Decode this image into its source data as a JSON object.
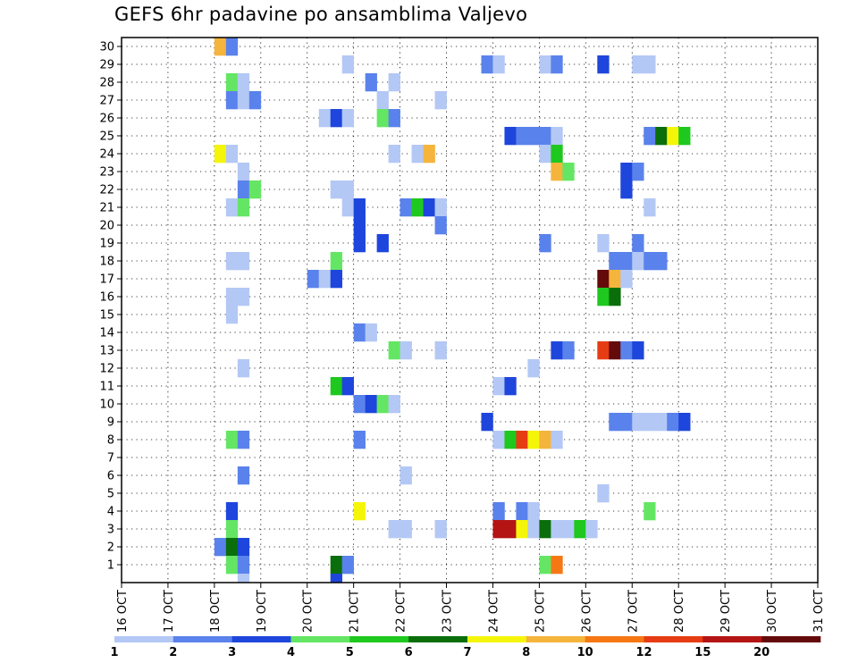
{
  "chart_data": {
    "type": "heatmap",
    "title": "GEFS 6hr padavine po ansamblima Valjevo",
    "xlabel": "",
    "ylabel": "",
    "x_tick_labels": [
      "16 OCT",
      "17 OCT",
      "18 OCT",
      "19 OCT",
      "20 OCT",
      "21 OCT",
      "22 OCT",
      "23 OCT",
      "24 OCT",
      "25 OCT",
      "26 OCT",
      "27 OCT",
      "28 OCT",
      "29 OCT",
      "30 OCT",
      "31 OCT"
    ],
    "y_tick_labels": [
      "1",
      "2",
      "3",
      "4",
      "5",
      "6",
      "7",
      "8",
      "9",
      "10",
      "11",
      "12",
      "13",
      "14",
      "15",
      "16",
      "17",
      "18",
      "19",
      "20",
      "21",
      "22",
      "23",
      "24",
      "25",
      "26",
      "27",
      "28",
      "29",
      "30"
    ],
    "x_units": "6-hour steps from 16 OCT 00Z",
    "xlim": [
      0,
      60
    ],
    "ylim": [
      0.5,
      30.5
    ],
    "grid": true,
    "legend": {
      "placement": "bottom",
      "levels": [
        "1",
        "2",
        "3",
        "4",
        "5",
        "6",
        "7",
        "8",
        "10",
        "12",
        "15",
        "20"
      ],
      "colors": [
        "#b4c8f5",
        "#5a82ec",
        "#1e46dc",
        "#64e664",
        "#1ec81e",
        "#0a6e0a",
        "#f5f50a",
        "#f5b43c",
        "#f57814",
        "#e63c14",
        "#b41414",
        "#640a0a"
      ]
    },
    "cells": [
      [
        8,
        30,
        8
      ],
      [
        9,
        30,
        2
      ],
      [
        19,
        29,
        1
      ],
      [
        31,
        29,
        2
      ],
      [
        32,
        29,
        1
      ],
      [
        36,
        29,
        1
      ],
      [
        37,
        29,
        2
      ],
      [
        41,
        29,
        3
      ],
      [
        44,
        29,
        1
      ],
      [
        45,
        29,
        1
      ],
      [
        9,
        28,
        4
      ],
      [
        10,
        28,
        1
      ],
      [
        21,
        28,
        2
      ],
      [
        23,
        28,
        1
      ],
      [
        9,
        27,
        2
      ],
      [
        10,
        27,
        1
      ],
      [
        11,
        27,
        2
      ],
      [
        22,
        27,
        1
      ],
      [
        27,
        27,
        1
      ],
      [
        17,
        26,
        1
      ],
      [
        18,
        26,
        3
      ],
      [
        19,
        26,
        1
      ],
      [
        22,
        26,
        4
      ],
      [
        23,
        26,
        2
      ],
      [
        33,
        25,
        3
      ],
      [
        34,
        25,
        2
      ],
      [
        35,
        25,
        2
      ],
      [
        36,
        25,
        2
      ],
      [
        37,
        25,
        1
      ],
      [
        45,
        25,
        2
      ],
      [
        46,
        25,
        6
      ],
      [
        47,
        25,
        7
      ],
      [
        48,
        25,
        5
      ],
      [
        8,
        24,
        7
      ],
      [
        9,
        24,
        1
      ],
      [
        23,
        24,
        1
      ],
      [
        25,
        24,
        1
      ],
      [
        26,
        24,
        8
      ],
      [
        36,
        24,
        1
      ],
      [
        37,
        24,
        5
      ],
      [
        10,
        23,
        1
      ],
      [
        37,
        23,
        8
      ],
      [
        38,
        23,
        4
      ],
      [
        43,
        23,
        3
      ],
      [
        44,
        23,
        2
      ],
      [
        10,
        22,
        2
      ],
      [
        11,
        22,
        4
      ],
      [
        18,
        22,
        1
      ],
      [
        19,
        22,
        1
      ],
      [
        43,
        22,
        3
      ],
      [
        9,
        21,
        1
      ],
      [
        10,
        21,
        4
      ],
      [
        19,
        21,
        1
      ],
      [
        20,
        21,
        3
      ],
      [
        24,
        21,
        2
      ],
      [
        25,
        21,
        5
      ],
      [
        26,
        21,
        3
      ],
      [
        27,
        21,
        1
      ],
      [
        45,
        21,
        1
      ],
      [
        20,
        20,
        3
      ],
      [
        27,
        20,
        2
      ],
      [
        20,
        19,
        3
      ],
      [
        22,
        19,
        3
      ],
      [
        36,
        19,
        2
      ],
      [
        41,
        19,
        1
      ],
      [
        44,
        19,
        2
      ],
      [
        9,
        18,
        1
      ],
      [
        10,
        18,
        1
      ],
      [
        18,
        18,
        4
      ],
      [
        42,
        18,
        2
      ],
      [
        43,
        18,
        2
      ],
      [
        44,
        18,
        1
      ],
      [
        45,
        18,
        2
      ],
      [
        46,
        18,
        2
      ],
      [
        16,
        17,
        2
      ],
      [
        17,
        17,
        1
      ],
      [
        18,
        17,
        3
      ],
      [
        41,
        17,
        12
      ],
      [
        42,
        17,
        8
      ],
      [
        43,
        17,
        1
      ],
      [
        9,
        16,
        1
      ],
      [
        10,
        16,
        1
      ],
      [
        41,
        16,
        5
      ],
      [
        42,
        16,
        6
      ],
      [
        9,
        15,
        1
      ],
      [
        20,
        14,
        2
      ],
      [
        21,
        14,
        1
      ],
      [
        23,
        13,
        4
      ],
      [
        24,
        13,
        1
      ],
      [
        27,
        13,
        1
      ],
      [
        37,
        13,
        3
      ],
      [
        38,
        13,
        2
      ],
      [
        41,
        13,
        10
      ],
      [
        42,
        13,
        12
      ],
      [
        43,
        13,
        2
      ],
      [
        44,
        13,
        3
      ],
      [
        60,
        13,
        2
      ],
      [
        10,
        12,
        1
      ],
      [
        35,
        12,
        1
      ],
      [
        18,
        11,
        5
      ],
      [
        19,
        11,
        3
      ],
      [
        32,
        11,
        1
      ],
      [
        33,
        11,
        3
      ],
      [
        60,
        11,
        1
      ],
      [
        20,
        10,
        2
      ],
      [
        21,
        10,
        3
      ],
      [
        22,
        10,
        4
      ],
      [
        23,
        10,
        1
      ],
      [
        31,
        9,
        3
      ],
      [
        42,
        9,
        2
      ],
      [
        43,
        9,
        2
      ],
      [
        44,
        9,
        1
      ],
      [
        45,
        9,
        1
      ],
      [
        46,
        9,
        1
      ],
      [
        47,
        9,
        2
      ],
      [
        48,
        9,
        3
      ],
      [
        9,
        8,
        4
      ],
      [
        10,
        8,
        2
      ],
      [
        20,
        8,
        2
      ],
      [
        32,
        8,
        1
      ],
      [
        33,
        8,
        5
      ],
      [
        34,
        8,
        10
      ],
      [
        35,
        8,
        7
      ],
      [
        36,
        8,
        8
      ],
      [
        37,
        8,
        1
      ],
      [
        10,
        6,
        2
      ],
      [
        24,
        6,
        1
      ],
      [
        41,
        5,
        1
      ],
      [
        9,
        4,
        3
      ],
      [
        20,
        4,
        7
      ],
      [
        32,
        4,
        2
      ],
      [
        34,
        4,
        2
      ],
      [
        35,
        4,
        1
      ],
      [
        45,
        4,
        4
      ],
      [
        9,
        3,
        4
      ],
      [
        23,
        3,
        1
      ],
      [
        24,
        3,
        1
      ],
      [
        27,
        3,
        1
      ],
      [
        32,
        3,
        11
      ],
      [
        33,
        3,
        11
      ],
      [
        34,
        3,
        7
      ],
      [
        35,
        3,
        1
      ],
      [
        36,
        3,
        6
      ],
      [
        37,
        3,
        1
      ],
      [
        38,
        3,
        1
      ],
      [
        39,
        3,
        5
      ],
      [
        40,
        3,
        1
      ],
      [
        8,
        2,
        2
      ],
      [
        9,
        2,
        6
      ],
      [
        10,
        2,
        3
      ],
      [
        9,
        1,
        4
      ],
      [
        10,
        1,
        2
      ],
      [
        18,
        1,
        6
      ],
      [
        19,
        1,
        2
      ],
      [
        36,
        1,
        4
      ],
      [
        37,
        1,
        9
      ],
      [
        10,
        0,
        1
      ],
      [
        18,
        0,
        3
      ]
    ]
  }
}
